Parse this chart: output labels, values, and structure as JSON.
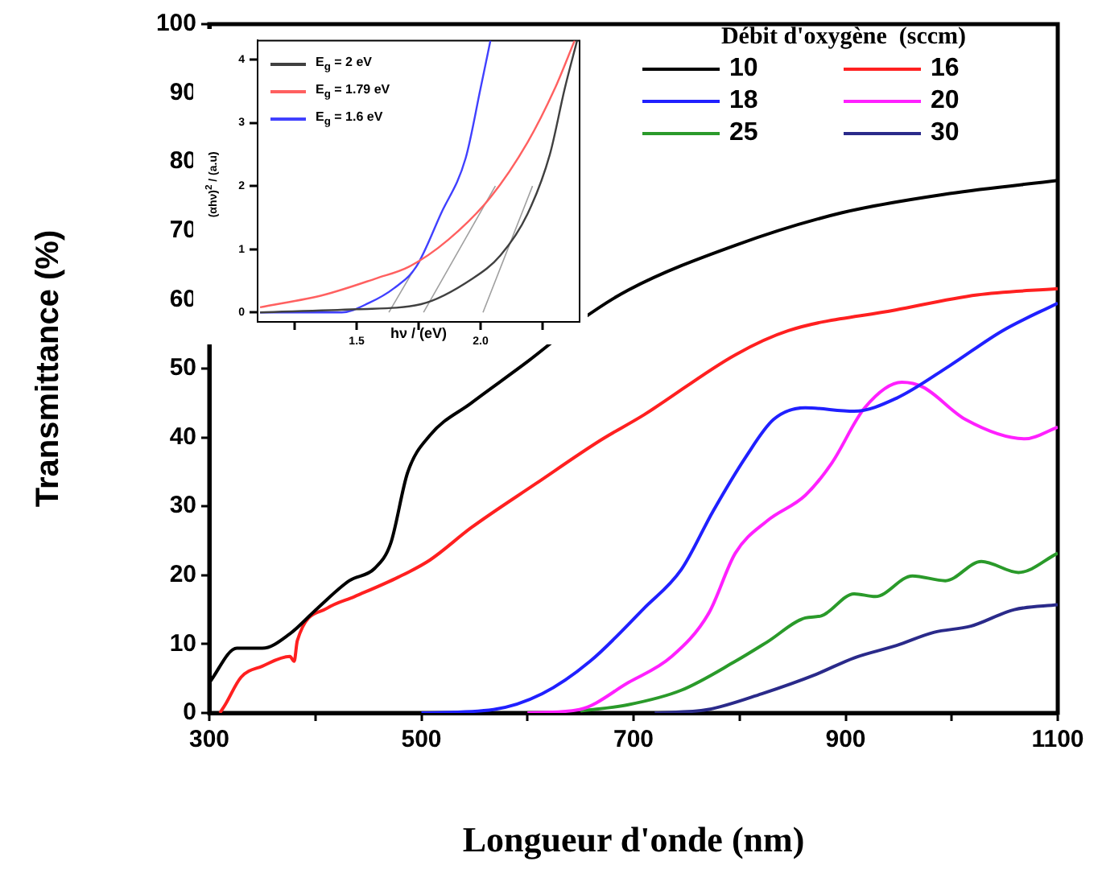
{
  "chart_data": [
    {
      "type": "line",
      "xlabel": "Longueur d'onde (nm)",
      "ylabel": "Transmittance (%)",
      "legend_title": "Débit d'oxygène  (sccm)",
      "legend": "top right",
      "marker": "none",
      "line_style": "solid",
      "xlim": [
        300,
        1100
      ],
      "xticks": [
        300,
        {
          "value": 400,
          "label": null
        },
        500,
        {
          "value": 600,
          "label": null
        },
        700,
        {
          "value": 800,
          "label": null
        },
        900,
        {
          "value": 1000,
          "label": null
        },
        1100
      ],
      "ylim": [
        0,
        100
      ],
      "yticks": [
        0,
        10,
        20,
        30,
        40,
        50,
        60,
        70,
        80,
        90,
        100
      ],
      "series": [
        {
          "name": "10",
          "color": "#000000",
          "x": [
            300,
            326,
            350,
            376,
            402,
            432,
            456,
            471,
            487,
            508,
            547,
            600,
            650,
            695,
            796,
            896,
            998,
            1100
          ],
          "values": [
            4.4,
            9.4,
            9.4,
            11.5,
            15.2,
            19.2,
            21,
            24.6,
            34.9,
            40.3,
            45,
            51,
            57,
            61.4,
            67.9,
            72.6,
            75.4,
            77.3
          ]
        },
        {
          "name": "16",
          "color": "#ff2020",
          "x": [
            310,
            315,
            330,
            350,
            376,
            380,
            383,
            411,
            437,
            478,
            508,
            547,
            608,
            669,
            710,
            796,
            846,
            947,
            1024,
            1100
          ],
          "values": [
            0,
            1.2,
            5.2,
            6.8,
            8.2,
            7.5,
            10.5,
            15.2,
            16.9,
            19.7,
            22.2,
            26.9,
            33.3,
            39.6,
            43.3,
            52,
            55.5,
            58.5,
            60.7,
            61.6
          ]
        },
        {
          "name": "18",
          "color": "#2020ff",
          "x": [
            500,
            568,
            614,
            659,
            710,
            745,
            775,
            806,
            832,
            862,
            908,
            948,
            998,
            1048,
            1100
          ],
          "values": [
            0,
            0.5,
            2.8,
            7.5,
            15.2,
            20.8,
            29.3,
            37.2,
            42.6,
            44.3,
            43.8,
            45.7,
            50.4,
            55.5,
            59.5
          ]
        },
        {
          "name": "20",
          "color": "#ff20ff",
          "x": [
            600,
            649,
            695,
            736,
            771,
            796,
            826,
            862,
            887,
            918,
            953,
            973,
            1013,
            1069,
            1100
          ],
          "values": [
            0,
            0.5,
            4.4,
            8.2,
            14.5,
            23.2,
            27.9,
            31.6,
            36.3,
            44.3,
            48,
            47.3,
            42.6,
            39.8,
            41.5
          ]
        },
        {
          "name": "25",
          "color": "#2a9a2a",
          "x": [
            650,
            695,
            745,
            796,
            826,
            862,
            877,
            908,
            928,
            963,
            994,
            1028,
            1063,
            1100
          ],
          "values": [
            0.3,
            1.2,
            3.3,
            7.5,
            10.3,
            13.8,
            14.1,
            17.3,
            16.9,
            19.9,
            19.2,
            22,
            20.4,
            23.2
          ]
        },
        {
          "name": "30",
          "color": "#2a2a8a",
          "x": [
            720,
            770,
            821,
            872,
            908,
            948,
            983,
            1018,
            1059,
            1100
          ],
          "values": [
            0,
            0.5,
            2.8,
            5.6,
            8,
            9.8,
            11.7,
            12.6,
            15,
            15.7
          ]
        }
      ]
    },
    {
      "type": "line",
      "xlabel": "hν / (eV)",
      "ylabel": "(αhν)$^{2}$ / (a.u)",
      "legend": "top left",
      "marker": "none",
      "line_style": "solid",
      "xlim": [
        1.1,
        2.4
      ],
      "xticks": [
        {
          "value": 1.25,
          "label": null
        },
        1.5,
        {
          "value": 1.75,
          "label": null
        },
        {
          "value": 2,
          "label": "2.0"
        },
        {
          "value": 2.25,
          "label": null
        }
      ],
      "ylim": [
        -0.15,
        4.3
      ],
      "yticks": [
        0,
        1,
        2,
        3,
        4
      ],
      "series": [
        {
          "name": "E$_{g}$ = 2 eV",
          "color": "#404040",
          "x": [
            1.11,
            1.5,
            1.76,
            1.97,
            2.08,
            2.19,
            2.28,
            2.34,
            2.39
          ],
          "values": [
            0,
            0.05,
            0.13,
            0.54,
            0.9,
            1.56,
            2.5,
            3.54,
            4.3
          ]
        },
        {
          "name": "E$_{g}$ = 1.79 eV",
          "color": "#ff6060",
          "x": [
            1.11,
            1.37,
            1.58,
            1.71,
            1.87,
            2.04,
            2.19,
            2.3,
            2.38
          ],
          "values": [
            0.08,
            0.28,
            0.54,
            0.72,
            1.15,
            1.82,
            2.69,
            3.54,
            4.3
          ]
        },
        {
          "name": "E$_{g}$ = 1.6 eV",
          "color": "#4040ff",
          "x": [
            1.11,
            1.44,
            1.55,
            1.65,
            1.74,
            1.84,
            1.94,
            2.0,
            2.04
          ],
          "values": [
            0,
            0,
            0.15,
            0.38,
            0.72,
            1.56,
            2.44,
            3.54,
            4.3
          ]
        },
        {
          "color": "#a0a0a0",
          "x": [
            2.01,
            2.21
          ],
          "values": [
            0,
            2
          ]
        },
        {
          "color": "#a0a0a0",
          "x": [
            1.77,
            2.06
          ],
          "values": [
            0,
            2
          ]
        },
        {
          "color": "#a0a0a0",
          "x": [
            1.63,
            1.73
          ],
          "values": [
            0,
            0.67
          ]
        }
      ]
    }
  ]
}
